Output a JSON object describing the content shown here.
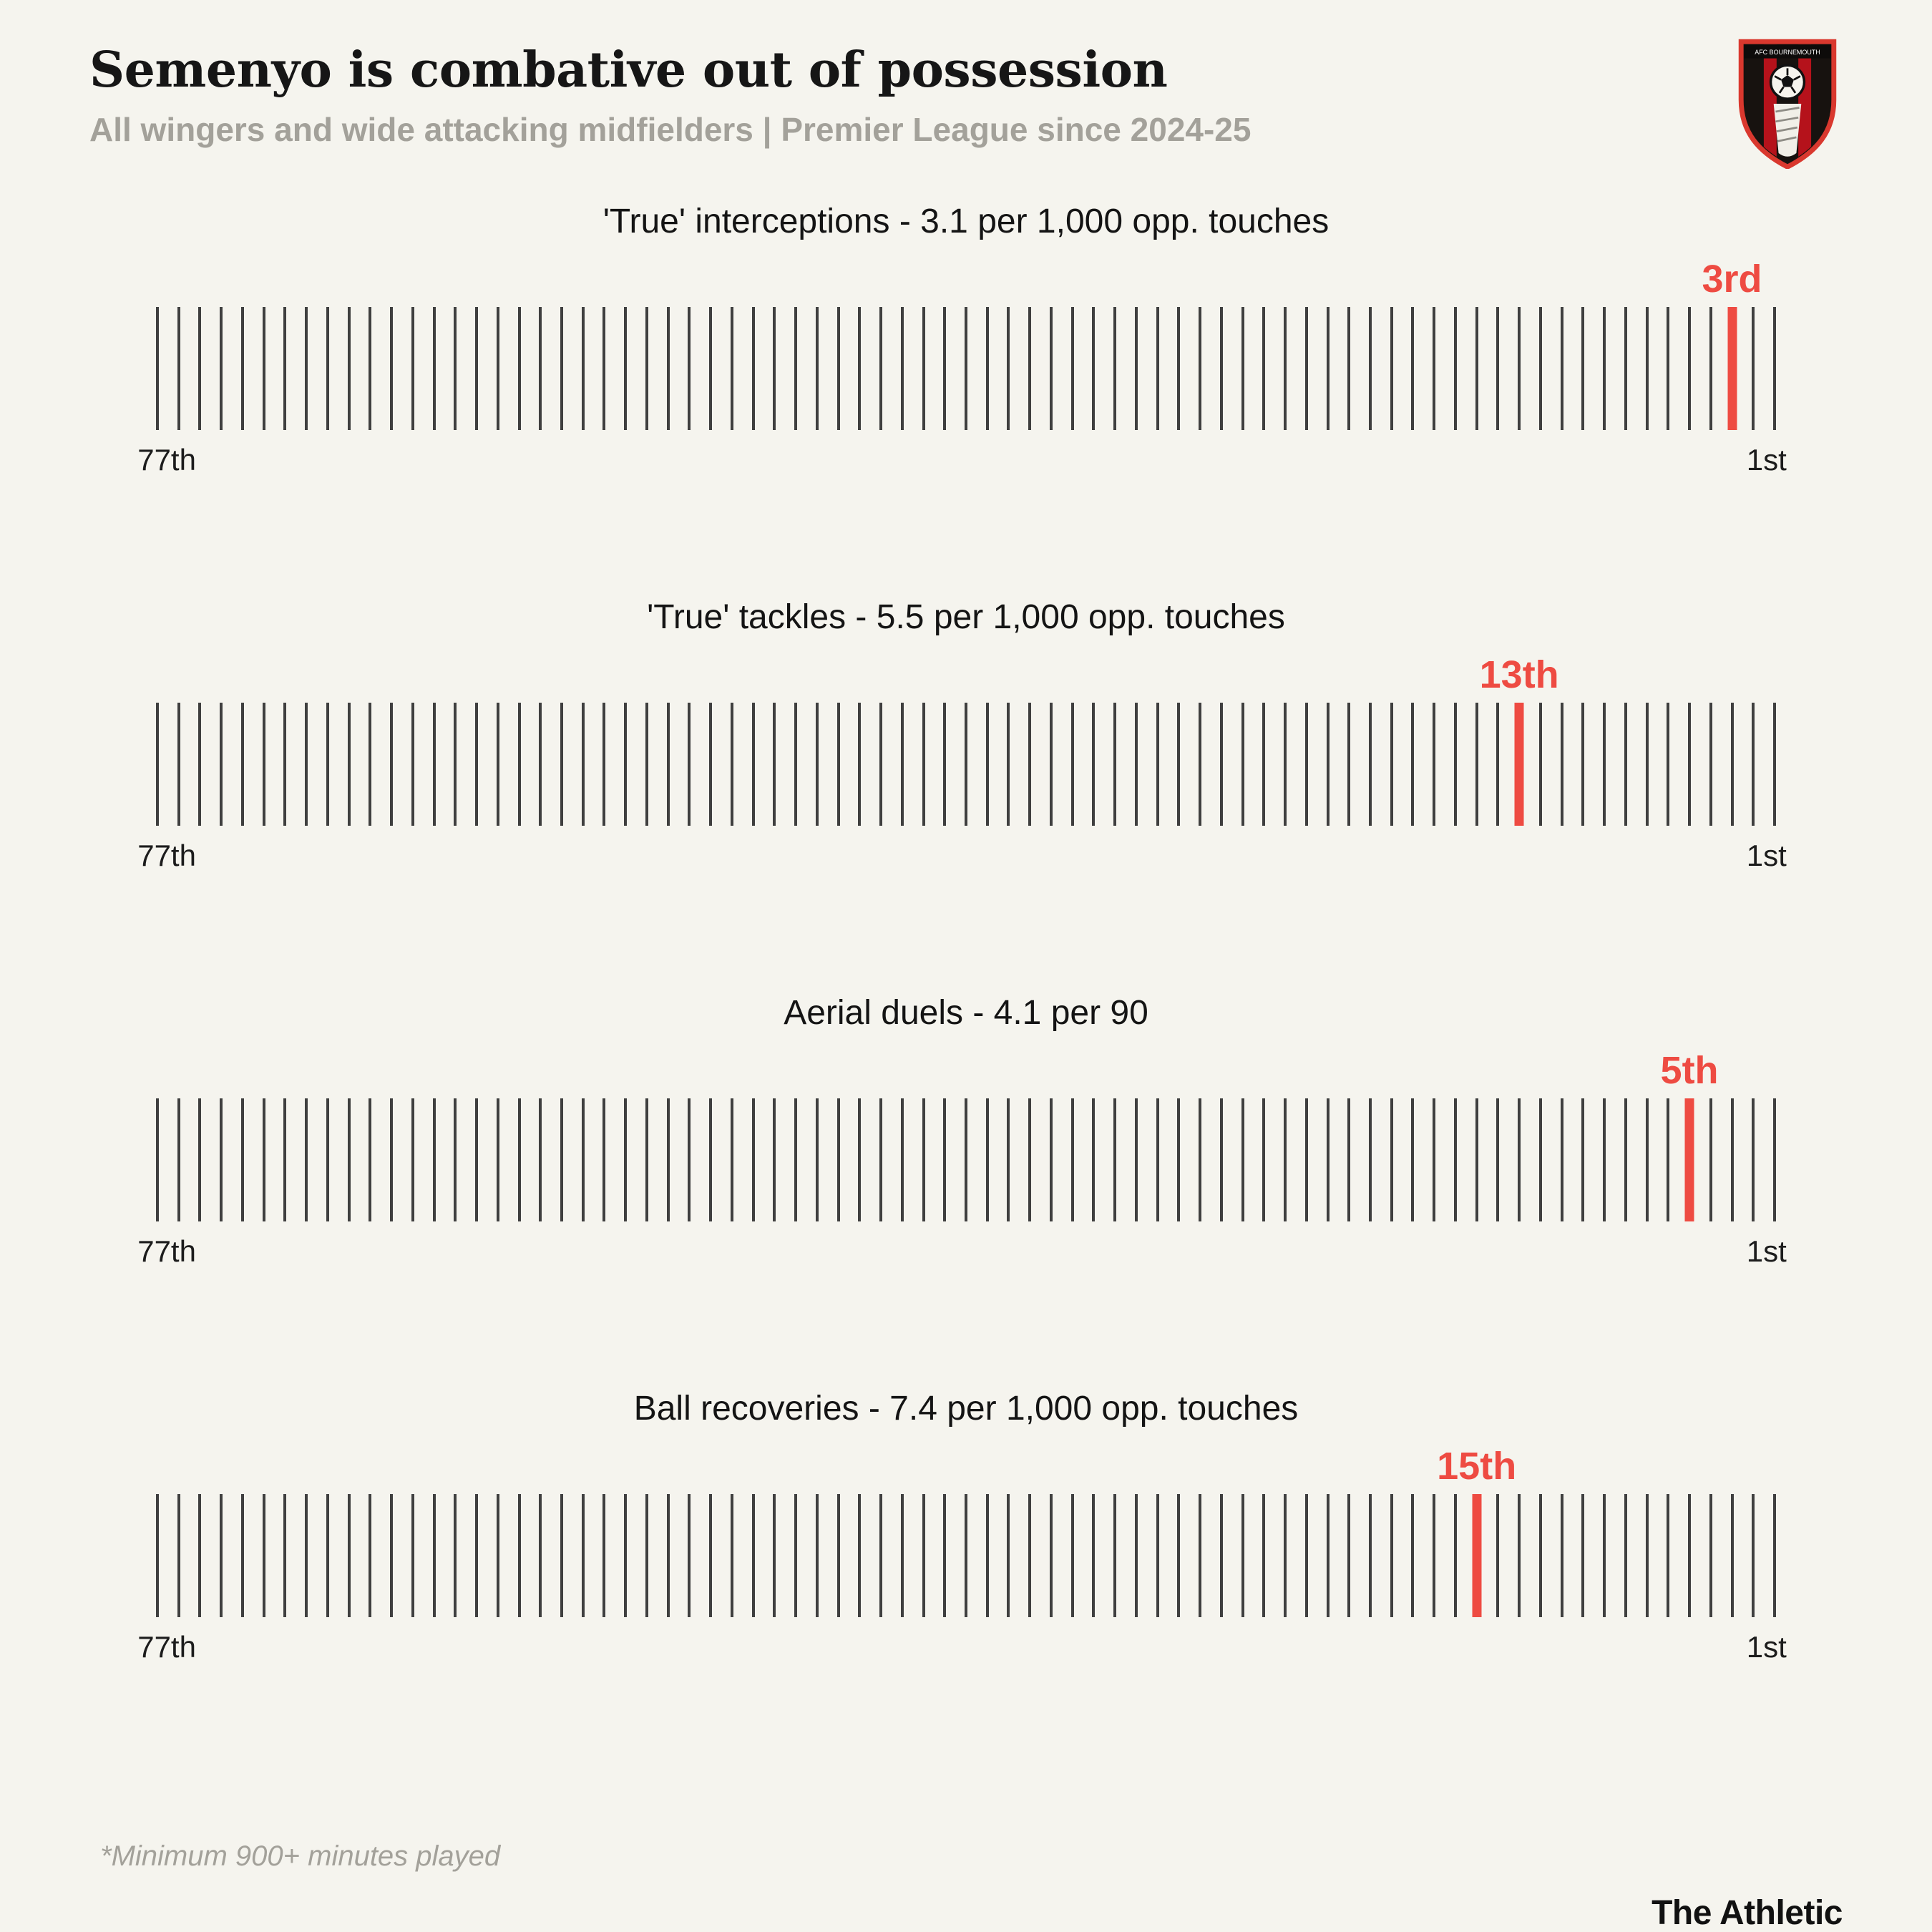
{
  "header": {
    "title": "Semenyo is combative out of possession",
    "subtitle": "All wingers and wide attacking midfielders | Premier League since 2024-25",
    "club_badge_text": "AFC BOURNEMOUTH"
  },
  "chart_data": {
    "type": "strip",
    "description": "Four percentile-rank strip plots of 77 ranked players; ticks run from 77th (left) to 1st (right); a red tick marks Semenyo's rank in each metric",
    "axis": {
      "left_label": "77th",
      "right_label": "1st",
      "n_ticks": 77
    },
    "panels": [
      {
        "title": "'True' interceptions - 3.1 per 1,000 opp. touches",
        "rank": 3,
        "rank_label": "3rd"
      },
      {
        "title": "'True' tackles - 5.5 per 1,000 opp. touches",
        "rank": 13,
        "rank_label": "13th"
      },
      {
        "title": "Aerial duels - 4.1 per 90",
        "rank": 5,
        "rank_label": "5th"
      },
      {
        "title": "Ball recoveries - 7.4 per 1,000 opp. touches",
        "rank": 15,
        "rank_label": "15th"
      }
    ],
    "colors": {
      "tick": "#3f3f3f",
      "highlight": "#ee4b42",
      "background": "#f5f4ee"
    }
  },
  "footer": {
    "note": "*Minimum 900+ minutes played",
    "brand": "The Athletic"
  }
}
